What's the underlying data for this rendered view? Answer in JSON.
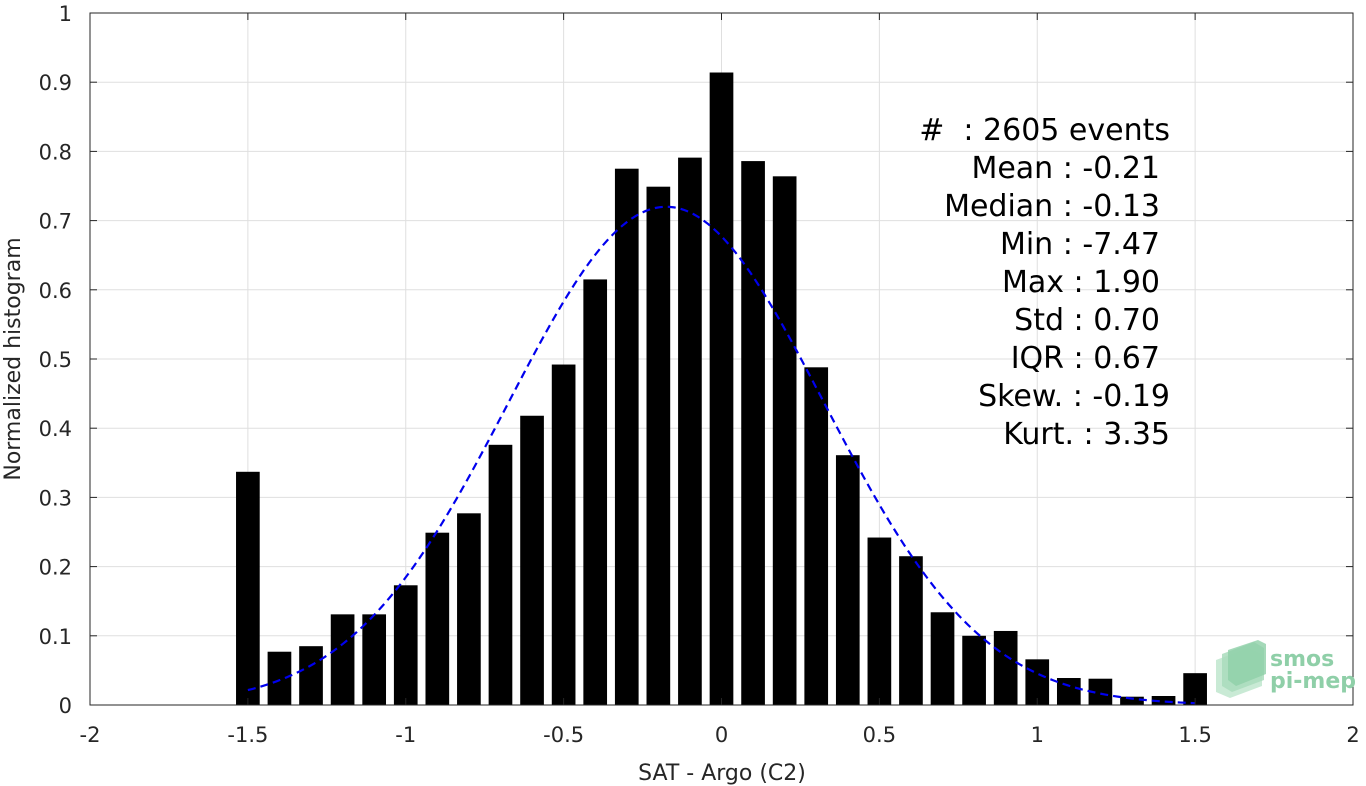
{
  "chart_data": {
    "type": "bar",
    "xlabel": "SAT - Argo (C2)",
    "ylabel": "Normalized histogram",
    "xlim": [
      -2,
      2
    ],
    "ylim": [
      0,
      1
    ],
    "xticks": [
      -2,
      -1.5,
      -1,
      -0.5,
      0,
      0.5,
      1,
      1.5,
      2
    ],
    "xtick_labels": [
      "-2",
      "-1.5",
      "-1",
      "-0.5",
      "0",
      "0.5",
      "1",
      "1.5",
      "2"
    ],
    "yticks": [
      0,
      0.1,
      0.2,
      0.3,
      0.4,
      0.5,
      0.6,
      0.7,
      0.8,
      0.9,
      1
    ],
    "ytick_labels": [
      "0",
      "0.1",
      "0.2",
      "0.3",
      "0.4",
      "0.5",
      "0.6",
      "0.7",
      "0.8",
      "0.9",
      "1"
    ],
    "grid": true,
    "bars": {
      "x": [
        -1.5,
        -1.4,
        -1.3,
        -1.2,
        -1.1,
        -1.0,
        -0.9,
        -0.8,
        -0.7,
        -0.6,
        -0.5,
        -0.4,
        -0.3,
        -0.2,
        -0.1,
        0.0,
        0.1,
        0.2,
        0.3,
        0.4,
        0.5,
        0.6,
        0.7,
        0.8,
        0.9,
        1.0,
        1.1,
        1.2,
        1.3,
        1.4,
        1.5
      ],
      "values": [
        0.337,
        0.077,
        0.085,
        0.131,
        0.131,
        0.173,
        0.249,
        0.277,
        0.376,
        0.418,
        0.492,
        0.615,
        0.775,
        0.749,
        0.791,
        0.914,
        0.786,
        0.764,
        0.488,
        0.361,
        0.242,
        0.215,
        0.134,
        0.1,
        0.107,
        0.066,
        0.039,
        0.038,
        0.012,
        0.013,
        0.046
      ],
      "color": "#000000",
      "width": 0.075
    },
    "fit_curve": {
      "style": "dashed",
      "color": "#0000ee",
      "mean": -0.175,
      "std": 0.5,
      "peak": 0.72,
      "x_range": [
        -1.5,
        1.5
      ]
    },
    "annotations": [
      "#  : 2605 events",
      "Mean : -0.21",
      "Median : -0.13",
      "Min : -7.47",
      "Max : 1.90",
      "Std : 0.70",
      "IQR : 0.67",
      "Skew. : -0.19",
      "Kurt. : 3.35"
    ]
  },
  "logo": {
    "line1": "smos",
    "line2": "pi-mep",
    "color": "#8fcfa8"
  }
}
